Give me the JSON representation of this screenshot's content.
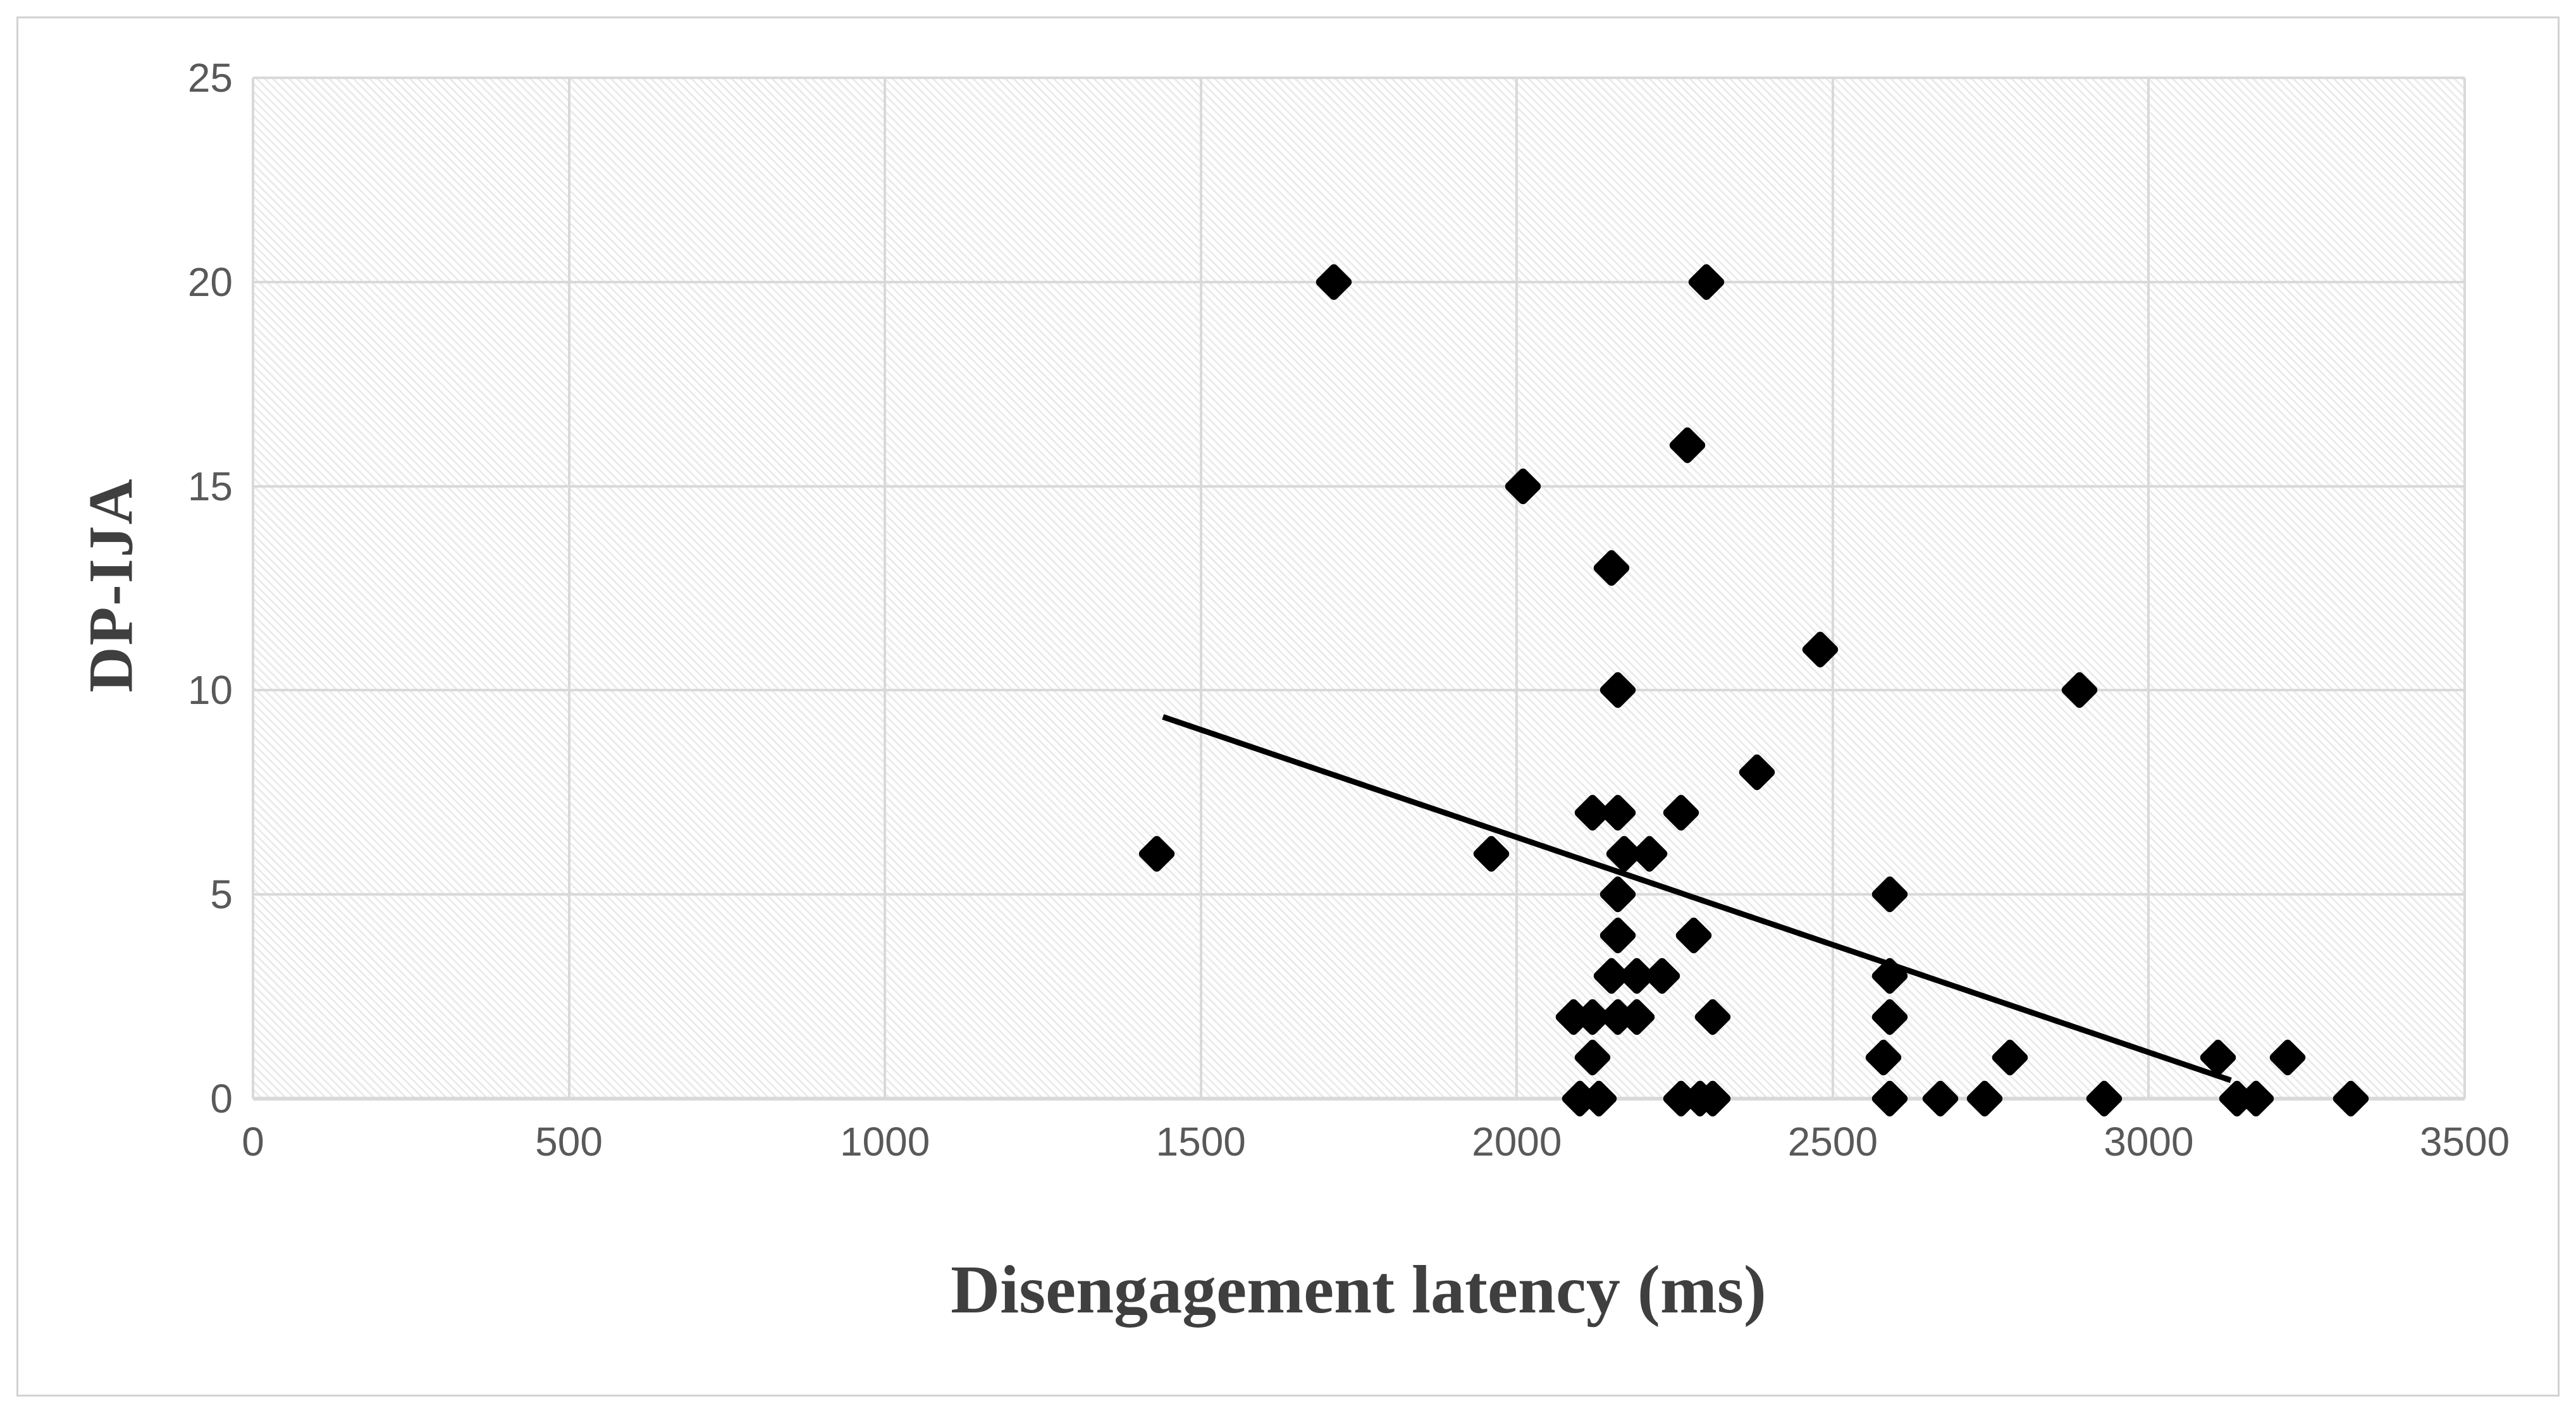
{
  "figure": {
    "background": "#ffffff",
    "border_color": "#d2d2d2"
  },
  "chart_data": {
    "type": "scatter",
    "title": "",
    "xlabel": "Disengagement latency (ms)",
    "ylabel": "DP-IJA",
    "xlim": [
      0,
      3500
    ],
    "ylim": [
      0,
      25
    ],
    "x_ticks": [
      0,
      500,
      1000,
      1500,
      2000,
      2500,
      3000,
      3500
    ],
    "y_ticks": [
      0,
      5,
      10,
      15,
      20,
      25
    ],
    "grid": "both",
    "legend": "none",
    "plot_area_fill": "light-diagonal-hatch",
    "colors": {
      "marker": "#000000",
      "trendline": "#000000",
      "gridline": "#d9d9d9",
      "tick_text": "#595959",
      "axis_title_text": "#3f3f3f"
    },
    "marker": {
      "shape": "diamond",
      "color": "#000000"
    },
    "points": [
      [
        1430,
        6
      ],
      [
        1710,
        20
      ],
      [
        1960,
        6
      ],
      [
        2010,
        15
      ],
      [
        2150,
        13
      ],
      [
        2160,
        10
      ],
      [
        2270,
        16
      ],
      [
        2300,
        20
      ],
      [
        2380,
        8
      ],
      [
        2480,
        11
      ],
      [
        2890,
        10
      ],
      [
        2120,
        7
      ],
      [
        2160,
        7
      ],
      [
        2260,
        7
      ],
      [
        2170,
        6
      ],
      [
        2210,
        6
      ],
      [
        2160,
        5
      ],
      [
        2590,
        5
      ],
      [
        2160,
        4
      ],
      [
        2280,
        4
      ],
      [
        2150,
        3
      ],
      [
        2190,
        3
      ],
      [
        2230,
        3
      ],
      [
        2590,
        3
      ],
      [
        2090,
        2
      ],
      [
        2120,
        2
      ],
      [
        2160,
        2
      ],
      [
        2190,
        2
      ],
      [
        2310,
        2
      ],
      [
        2590,
        2
      ],
      [
        2120,
        1
      ],
      [
        2580,
        1
      ],
      [
        2780,
        1
      ],
      [
        3110,
        1
      ],
      [
        3220,
        1
      ],
      [
        2100,
        0
      ],
      [
        2130,
        0
      ],
      [
        2260,
        0
      ],
      [
        2290,
        0
      ],
      [
        2310,
        0
      ],
      [
        2590,
        0
      ],
      [
        2670,
        0
      ],
      [
        2740,
        0
      ],
      [
        2930,
        0
      ],
      [
        3140,
        0
      ],
      [
        3170,
        0
      ],
      [
        3320,
        0
      ]
    ],
    "trendline": {
      "x1": 1440,
      "y1": 9.35,
      "x2": 3130,
      "y2": 0.45,
      "width": 9
    }
  }
}
